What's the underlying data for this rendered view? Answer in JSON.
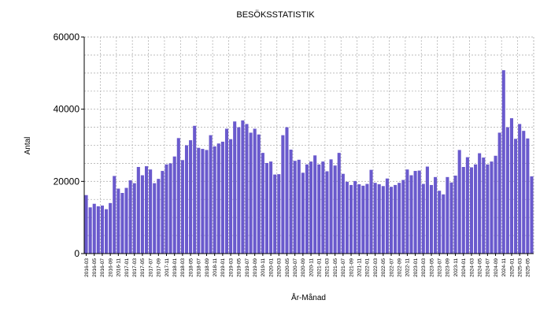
{
  "chart_data": {
    "type": "bar",
    "title": "BESÖKSSTATISTIK",
    "xlabel": "År-Månad",
    "ylabel": "Antal",
    "ylim": [
      0,
      60000
    ],
    "yticks": [
      "0",
      "20000",
      "40000",
      "60000"
    ],
    "grid": true,
    "bar_color": "#6a5acd",
    "categories": [
      "2016-03",
      "2016-04",
      "2016-05",
      "2016-06",
      "2016-07",
      "2016-08",
      "2016-09",
      "2016-10",
      "2016-11",
      "2016-12",
      "2017-01",
      "2017-02",
      "2017-03",
      "2017-04",
      "2017-05",
      "2017-06",
      "2017-07",
      "2017-08",
      "2017-09",
      "2017-10",
      "2017-11",
      "2017-12",
      "2018-01",
      "2018-02",
      "2018-03",
      "2018-04",
      "2018-05",
      "2018-06",
      "2018-07",
      "2018-08",
      "2018-09",
      "2018-10",
      "2018-11",
      "2018-12",
      "2019-01",
      "2019-02",
      "2019-03",
      "2019-04",
      "2019-05",
      "2019-06",
      "2019-07",
      "2019-08",
      "2019-09",
      "2019-10",
      "2019-11",
      "2019-12",
      "2020-01",
      "2020-02",
      "2020-03",
      "2020-04",
      "2020-05",
      "2020-06",
      "2020-07",
      "2020-08",
      "2020-09",
      "2020-10",
      "2020-11",
      "2020-12",
      "2021-01",
      "2021-02",
      "2021-03",
      "2021-04",
      "2021-05",
      "2021-06",
      "2021-07",
      "2021-08",
      "2021-09",
      "2021-10",
      "2021-11",
      "2021-12",
      "2022-01",
      "2022-02",
      "2022-03",
      "2022-04",
      "2022-05",
      "2022-06",
      "2022-07",
      "2022-08",
      "2022-09",
      "2022-10",
      "2022-11",
      "2022-12",
      "2023-01",
      "2023-02",
      "2023-03",
      "2023-04",
      "2023-05",
      "2023-06",
      "2023-07",
      "2023-08",
      "2023-09",
      "2023-10",
      "2023-11",
      "2023-12",
      "2024-01",
      "2024-02",
      "2024-03",
      "2024-04",
      "2024-05",
      "2024-06",
      "2024-07",
      "2024-08",
      "2024-09",
      "2024-10",
      "2024-11",
      "2024-12",
      "2025-01",
      "2025-02",
      "2025-03",
      "2025-04",
      "2025-05",
      "2025-06"
    ],
    "values": [
      16200,
      12800,
      13800,
      13100,
      13300,
      12300,
      14000,
      21500,
      18000,
      16800,
      18200,
      20300,
      19500,
      24000,
      21700,
      24200,
      23300,
      19500,
      20700,
      22900,
      24700,
      25000,
      26900,
      32000,
      25900,
      30000,
      31400,
      35400,
      29300,
      29000,
      28700,
      32800,
      29700,
      30500,
      31000,
      34600,
      31700,
      36600,
      35000,
      36900,
      35900,
      33500,
      34600,
      33000,
      27900,
      25100,
      25500,
      21900,
      22000,
      32800,
      35000,
      28800,
      25700,
      26000,
      22400,
      24700,
      25500,
      27200,
      24700,
      25500,
      22800,
      26100,
      24400,
      27900,
      22100,
      19900,
      19000,
      20100,
      19200,
      18800,
      19300,
      23200,
      19600,
      19200,
      18700,
      20800,
      18500,
      19000,
      19600,
      20400,
      23300,
      21700,
      22900,
      23000,
      19300,
      24100,
      19000,
      21200,
      17400,
      16400,
      21200,
      19700,
      21600,
      28700,
      24000,
      26700,
      23900,
      24700,
      27800,
      26600,
      24700,
      25500,
      27100,
      33500,
      50800,
      35000,
      37500,
      31800,
      35900,
      34000,
      31900,
      21400
    ]
  }
}
